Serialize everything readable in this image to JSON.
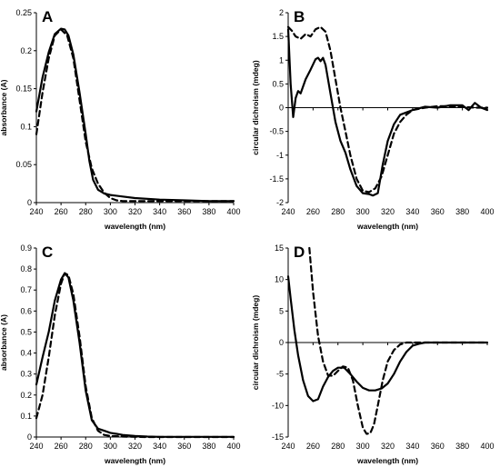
{
  "chart_data": [
    {
      "type": "line",
      "panel_label": "A",
      "xlabel": "wavelength (nm)",
      "ylabel": "absorbance (A)",
      "xlim": [
        240,
        400
      ],
      "ylim": [
        0,
        0.25
      ],
      "xticks": [
        240,
        260,
        280,
        300,
        320,
        340,
        360,
        380,
        400
      ],
      "yticks": [
        0,
        0.05,
        0.1,
        0.15,
        0.2,
        0.25
      ],
      "ytick_labels": [
        "0",
        "0.05",
        "0.1",
        "0.15",
        "0.2",
        "0.25"
      ],
      "series": [
        {
          "style": "solid",
          "x": [
            240,
            245,
            250,
            255,
            260,
            263,
            266,
            270,
            275,
            280,
            283,
            286,
            290,
            295,
            300,
            310,
            320,
            340,
            360,
            380,
            400
          ],
          "y": [
            0.12,
            0.165,
            0.198,
            0.222,
            0.229,
            0.228,
            0.22,
            0.195,
            0.145,
            0.09,
            0.055,
            0.03,
            0.017,
            0.012,
            0.01,
            0.008,
            0.006,
            0.004,
            0.003,
            0.002,
            0.002
          ]
        },
        {
          "style": "dashed",
          "x": [
            240,
            245,
            250,
            255,
            260,
            265,
            270,
            275,
            280,
            285,
            290,
            295,
            300,
            305,
            310,
            320,
            340,
            360,
            380,
            400
          ],
          "y": [
            0.09,
            0.145,
            0.19,
            0.22,
            0.228,
            0.22,
            0.19,
            0.135,
            0.08,
            0.045,
            0.025,
            0.013,
            0.006,
            0.003,
            0.002,
            0.002,
            0.002,
            0.002,
            0.002,
            0.002
          ]
        }
      ]
    },
    {
      "type": "line",
      "panel_label": "B",
      "xlabel": "wavelength (nm)",
      "ylabel": "circular dichroism (mdeg)",
      "xlim": [
        240,
        400
      ],
      "ylim": [
        -2,
        2
      ],
      "xticks": [
        240,
        260,
        280,
        300,
        320,
        340,
        360,
        380,
        400
      ],
      "yticks": [
        -2,
        -1.5,
        -1,
        -0.5,
        0,
        0.5,
        1,
        1.5,
        2
      ],
      "ytick_labels": [
        "-2",
        "-1.5",
        "-1",
        "-0.5",
        "0",
        "0.5",
        "1",
        "1.5",
        "2"
      ],
      "series": [
        {
          "style": "solid",
          "x": [
            240,
            242,
            244,
            246,
            248,
            250,
            254,
            258,
            262,
            264,
            266,
            268,
            270,
            274,
            278,
            282,
            286,
            290,
            295,
            300,
            305,
            308,
            312,
            316,
            320,
            325,
            330,
            340,
            350,
            360,
            370,
            380,
            385,
            390,
            395,
            400
          ],
          "y": [
            1.65,
            0.5,
            -0.2,
            0.2,
            0.35,
            0.3,
            0.6,
            0.8,
            1.02,
            1.05,
            0.98,
            1.05,
            0.9,
            0.3,
            -0.3,
            -0.7,
            -0.95,
            -1.3,
            -1.65,
            -1.8,
            -1.82,
            -1.85,
            -1.8,
            -1.2,
            -0.7,
            -0.35,
            -0.15,
            -0.05,
            0.02,
            0.0,
            0.05,
            0.05,
            -0.05,
            0.1,
            0.0,
            -0.05
          ]
        },
        {
          "style": "dashed",
          "x": [
            240,
            243,
            246,
            250,
            254,
            258,
            262,
            266,
            270,
            274,
            278,
            282,
            286,
            290,
            295,
            300,
            305,
            310,
            315,
            320,
            325,
            330,
            335,
            340,
            350,
            360,
            370,
            380,
            390,
            400
          ],
          "y": [
            1.7,
            1.62,
            1.5,
            1.45,
            1.55,
            1.5,
            1.65,
            1.7,
            1.6,
            1.2,
            0.6,
            0.0,
            -0.5,
            -1.0,
            -1.5,
            -1.75,
            -1.78,
            -1.7,
            -1.45,
            -1.0,
            -0.55,
            -0.3,
            -0.15,
            -0.05,
            0.0,
            0.03,
            0.03,
            0.02,
            0.0,
            0.0
          ]
        }
      ]
    },
    {
      "type": "line",
      "panel_label": "C",
      "xlabel": "wavelength (nm)",
      "ylabel": "absorbance (A)",
      "xlim": [
        240,
        400
      ],
      "ylim": [
        0,
        0.9
      ],
      "xticks": [
        240,
        260,
        280,
        300,
        320,
        340,
        360,
        380,
        400
      ],
      "yticks": [
        0,
        0.1,
        0.2,
        0.3,
        0.4,
        0.5,
        0.6,
        0.7,
        0.8,
        0.9
      ],
      "ytick_labels": [
        "0",
        "0.1",
        "0.2",
        "0.3",
        "0.4",
        "0.5",
        "0.6",
        "0.7",
        "0.8",
        "0.9"
      ],
      "series": [
        {
          "style": "solid",
          "x": [
            240,
            245,
            250,
            255,
            260,
            263,
            266,
            270,
            275,
            280,
            285,
            290,
            295,
            300,
            305,
            310,
            320,
            330,
            340,
            400
          ],
          "y": [
            0.25,
            0.38,
            0.5,
            0.65,
            0.75,
            0.78,
            0.76,
            0.65,
            0.45,
            0.22,
            0.08,
            0.04,
            0.03,
            0.02,
            0.015,
            0.01,
            0.005,
            0.002,
            0.001,
            0.001
          ]
        },
        {
          "style": "dashed",
          "x": [
            240,
            245,
            250,
            255,
            260,
            263,
            266,
            270,
            275,
            280,
            285,
            290,
            295,
            300,
            310,
            320,
            330,
            400
          ],
          "y": [
            0.09,
            0.2,
            0.38,
            0.58,
            0.73,
            0.78,
            0.77,
            0.68,
            0.48,
            0.24,
            0.09,
            0.03,
            0.01,
            0.005,
            0.002,
            0.001,
            0.0,
            0.0
          ]
        }
      ]
    },
    {
      "type": "line",
      "panel_label": "D",
      "xlabel": "wavelength (nm)",
      "ylabel": "circular dichroism (mdeg)",
      "xlim": [
        240,
        400
      ],
      "ylim": [
        -15,
        15
      ],
      "xticks": [
        240,
        260,
        280,
        300,
        320,
        340,
        360,
        380,
        400
      ],
      "yticks": [
        -15,
        -10,
        -5,
        0,
        5,
        10,
        15
      ],
      "ytick_labels": [
        "-15",
        "-10",
        "-5",
        "0",
        "5",
        "10",
        "15"
      ],
      "series": [
        {
          "style": "solid",
          "x": [
            240,
            242,
            245,
            248,
            252,
            256,
            260,
            264,
            268,
            272,
            276,
            280,
            285,
            290,
            295,
            300,
            305,
            310,
            315,
            320,
            325,
            330,
            335,
            340,
            345,
            350,
            360,
            380,
            400
          ],
          "y": [
            10.5,
            7.0,
            2.0,
            -2.0,
            -6.0,
            -8.5,
            -9.3,
            -9.0,
            -7.0,
            -5.5,
            -4.5,
            -4.0,
            -4.0,
            -5.0,
            -6.2,
            -7.2,
            -7.6,
            -7.6,
            -7.3,
            -6.5,
            -5.0,
            -3.0,
            -1.5,
            -0.5,
            -0.2,
            0.0,
            0.0,
            0.0,
            0.0
          ]
        },
        {
          "style": "dashed",
          "x": [
            257,
            260,
            264,
            268,
            272,
            276,
            280,
            284,
            288,
            292,
            296,
            300,
            303,
            306,
            309,
            312,
            316,
            320,
            325,
            330,
            335,
            340,
            345,
            350,
            360,
            380,
            400
          ],
          "y": [
            15.0,
            8.0,
            1.0,
            -3.0,
            -5.2,
            -5.3,
            -4.5,
            -3.8,
            -4.0,
            -6.0,
            -10.0,
            -13.5,
            -14.5,
            -14.4,
            -13.0,
            -10.0,
            -6.0,
            -3.0,
            -1.2,
            -0.3,
            0.0,
            0.0,
            0.0,
            0.0,
            0.0,
            0.0,
            0.0
          ]
        }
      ]
    }
  ]
}
